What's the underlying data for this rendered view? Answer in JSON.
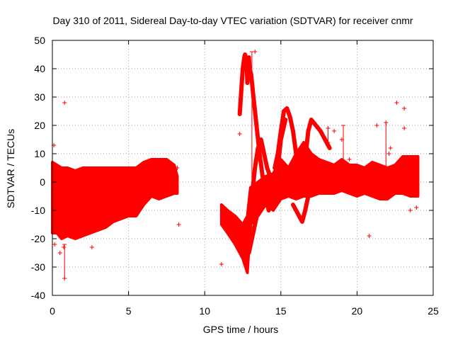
{
  "chart_data": {
    "type": "scatter",
    "title": "Day 310 of 2011, Sidereal Day-to-day VTEC variation (SDTVAR) for receiver cnmr",
    "xlabel": "GPS time / hours",
    "ylabel": "SDTVAR / TECUs",
    "xlim": [
      0,
      25
    ],
    "ylim": [
      -40,
      50
    ],
    "xticks": [
      0,
      5,
      10,
      15,
      20,
      25
    ],
    "yticks": [
      -40,
      -30,
      -20,
      -10,
      0,
      10,
      20,
      30,
      40,
      50
    ],
    "grid": true,
    "marker": "plus",
    "series_color": "#ff0000",
    "series": [
      {
        "name": "SDTVAR",
        "bands": [
          {
            "x": [
              0.0,
              0.3,
              0.6,
              1.0,
              1.5,
              2.0,
              2.5,
              3.0,
              3.5,
              4.0,
              4.5,
              5.0,
              5.5,
              6.0,
              6.5,
              7.0,
              7.5,
              8.0,
              8.2
            ],
            "low": [
              -18,
              -18,
              -20,
              -19,
              -20,
              -19,
              -18,
              -17,
              -16,
              -14,
              -13,
              -12,
              -12,
              -8,
              -5,
              -6,
              -5,
              -4,
              -4
            ],
            "high": [
              7,
              6,
              5,
              5,
              4,
              5,
              5,
              5,
              5,
              5,
              5,
              5,
              5,
              7,
              8,
              8,
              8,
              6,
              2
            ]
          },
          {
            "x": [
              11.1,
              11.5,
              12.0,
              12.5,
              12.8,
              13.0,
              13.5,
              14.0,
              14.5,
              15.0,
              15.5,
              16.0,
              16.5,
              17.0,
              17.5,
              18.0,
              18.5,
              19.0,
              19.5,
              20.0,
              20.5,
              21.0,
              21.5,
              22.0,
              22.5,
              23.0,
              23.5,
              24.0
            ],
            "low": [
              -15,
              -18,
              -22,
              -27,
              -32,
              -15,
              -12,
              -8,
              -10,
              -6,
              -5,
              -6,
              -5,
              -5,
              -4,
              -4,
              -4,
              -3,
              -4,
              -5,
              -4,
              -5,
              -6,
              -6,
              -4,
              -4,
              -5,
              -5
            ],
            "high": [
              -8,
              -10,
              -12,
              -15,
              -12,
              -2,
              0,
              2,
              3,
              8,
              5,
              10,
              14,
              10,
              8,
              7,
              6,
              8,
              6,
              6,
              5,
              7,
              6,
              5,
              6,
              9,
              9,
              9
            ]
          }
        ],
        "traces": [
          {
            "x": [
              12.3,
              12.4,
              12.5,
              12.6,
              12.65,
              12.75,
              12.8,
              12.9,
              12.95,
              13.05,
              13.2,
              13.4,
              13.6,
              13.8,
              14.0,
              14.2
            ],
            "y": [
              24,
              32,
              40,
              44,
              45,
              42,
              35,
              44,
              40,
              38,
              30,
              20,
              10,
              2,
              -5,
              -10
            ]
          },
          {
            "x": [
              13.1,
              13.2,
              13.3,
              13.5,
              13.7,
              13.9,
              14.1,
              14.3,
              14.5,
              14.8,
              15.0,
              15.3
            ],
            "y": [
              -5,
              0,
              5,
              12,
              15,
              10,
              5,
              2,
              0,
              5,
              15,
              22
            ]
          },
          {
            "x": [
              12.9,
              13.1,
              13.3,
              13.5,
              13.7,
              13.9,
              14.1,
              14.3,
              14.5,
              14.8,
              15.0,
              15.3,
              15.6,
              15.9
            ],
            "y": [
              -25,
              -20,
              -15,
              -10,
              -8,
              -7,
              -5,
              -6,
              -5,
              -4,
              0,
              5,
              2,
              -3
            ]
          },
          {
            "x": [
              14.6,
              14.8,
              15.0,
              15.2,
              15.4,
              15.6,
              15.8,
              16.0,
              16.2,
              16.4,
              16.6,
              16.8,
              17.0,
              17.3,
              17.6,
              17.9,
              18.2
            ],
            "y": [
              5,
              10,
              18,
              25,
              26,
              23,
              18,
              10,
              5,
              0,
              8,
              18,
              22,
              20,
              18,
              15,
              12
            ]
          },
          {
            "x": [
              15.8,
              16.0,
              16.2,
              16.4,
              16.6,
              16.8,
              17.0,
              17.2,
              17.4
            ],
            "y": [
              -8,
              -10,
              -12,
              -14,
              -10,
              -5,
              -2,
              0,
              2
            ]
          }
        ],
        "outliers": [
          {
            "x": 0.1,
            "y": 13
          },
          {
            "x": 0.15,
            "y": -22
          },
          {
            "x": 0.5,
            "y": -25
          },
          {
            "x": 0.8,
            "y": 28
          },
          {
            "x": 0.8,
            "y": -34
          },
          {
            "x": 0.75,
            "y": -23
          },
          {
            "x": 2.6,
            "y": -23
          },
          {
            "x": 8.2,
            "y": 5
          },
          {
            "x": 8.3,
            "y": -15
          },
          {
            "x": 11.1,
            "y": -29
          },
          {
            "x": 12.3,
            "y": 17
          },
          {
            "x": 12.9,
            "y": 44
          },
          {
            "x": 13.3,
            "y": 46
          },
          {
            "x": 18.1,
            "y": 19
          },
          {
            "x": 18.5,
            "y": 18
          },
          {
            "x": 19.0,
            "y": 15
          },
          {
            "x": 19.5,
            "y": 8
          },
          {
            "x": 20.8,
            "y": -19
          },
          {
            "x": 21.3,
            "y": 20
          },
          {
            "x": 21.9,
            "y": 21
          },
          {
            "x": 22.1,
            "y": 10
          },
          {
            "x": 22.2,
            "y": 12
          },
          {
            "x": 22.6,
            "y": 28
          },
          {
            "x": 23.1,
            "y": 26
          },
          {
            "x": 23.1,
            "y": 19
          },
          {
            "x": 23.5,
            "y": -10
          },
          {
            "x": 23.9,
            "y": -9
          },
          {
            "x": 18.2,
            "y": 4
          },
          {
            "x": 12.8,
            "y": -20
          }
        ],
        "errorbars": [
          {
            "x": 0.8,
            "low": -34,
            "high": -22
          },
          {
            "x": 13.1,
            "low": -20,
            "high": 46
          },
          {
            "x": 18.1,
            "low": 14,
            "high": 19
          },
          {
            "x": 19.1,
            "low": 2,
            "high": 20
          },
          {
            "x": 21.9,
            "low": 5,
            "high": 21
          }
        ]
      }
    ]
  }
}
